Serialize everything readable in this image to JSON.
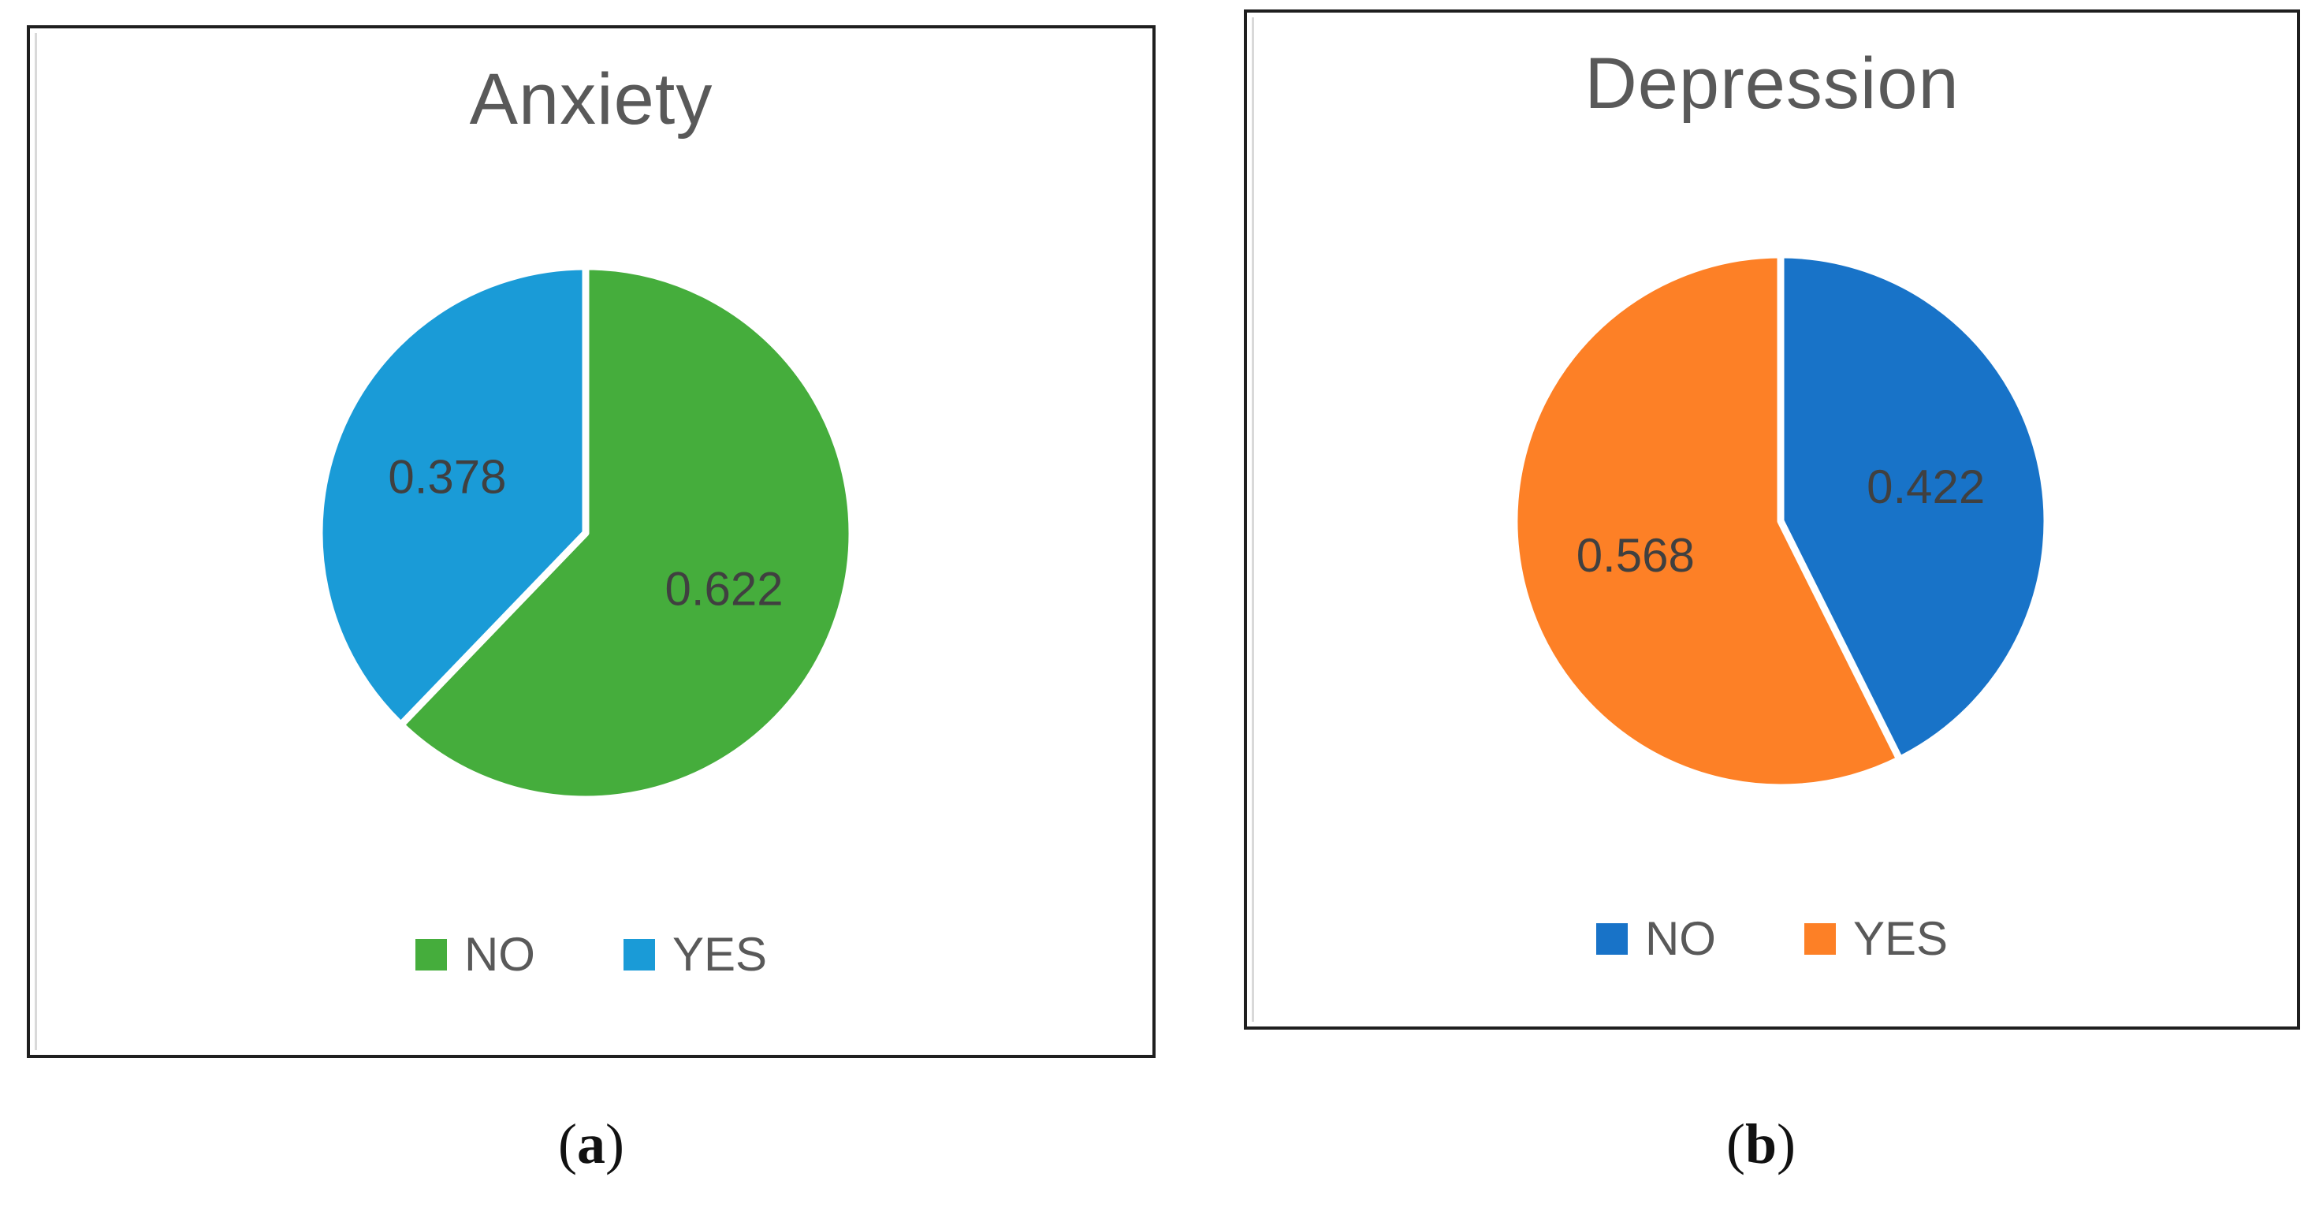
{
  "chart_data": [
    {
      "type": "pie",
      "title": "Anxiety",
      "categories": [
        "NO",
        "YES"
      ],
      "values": [
        0.622,
        0.378
      ],
      "data_labels": [
        "0.622",
        "0.378"
      ],
      "colors": [
        "#45ad3c",
        "#1a9bd7"
      ],
      "legend": "bottom",
      "panel_label": "a"
    },
    {
      "type": "pie",
      "title": "Depression",
      "categories": [
        "NO",
        "YES"
      ],
      "values": [
        0.422,
        0.568
      ],
      "data_labels": [
        "0.422",
        "0.568"
      ],
      "colors": [
        "#1873c8",
        "#fd8026"
      ],
      "legend": "bottom",
      "panel_label": "b"
    }
  ]
}
